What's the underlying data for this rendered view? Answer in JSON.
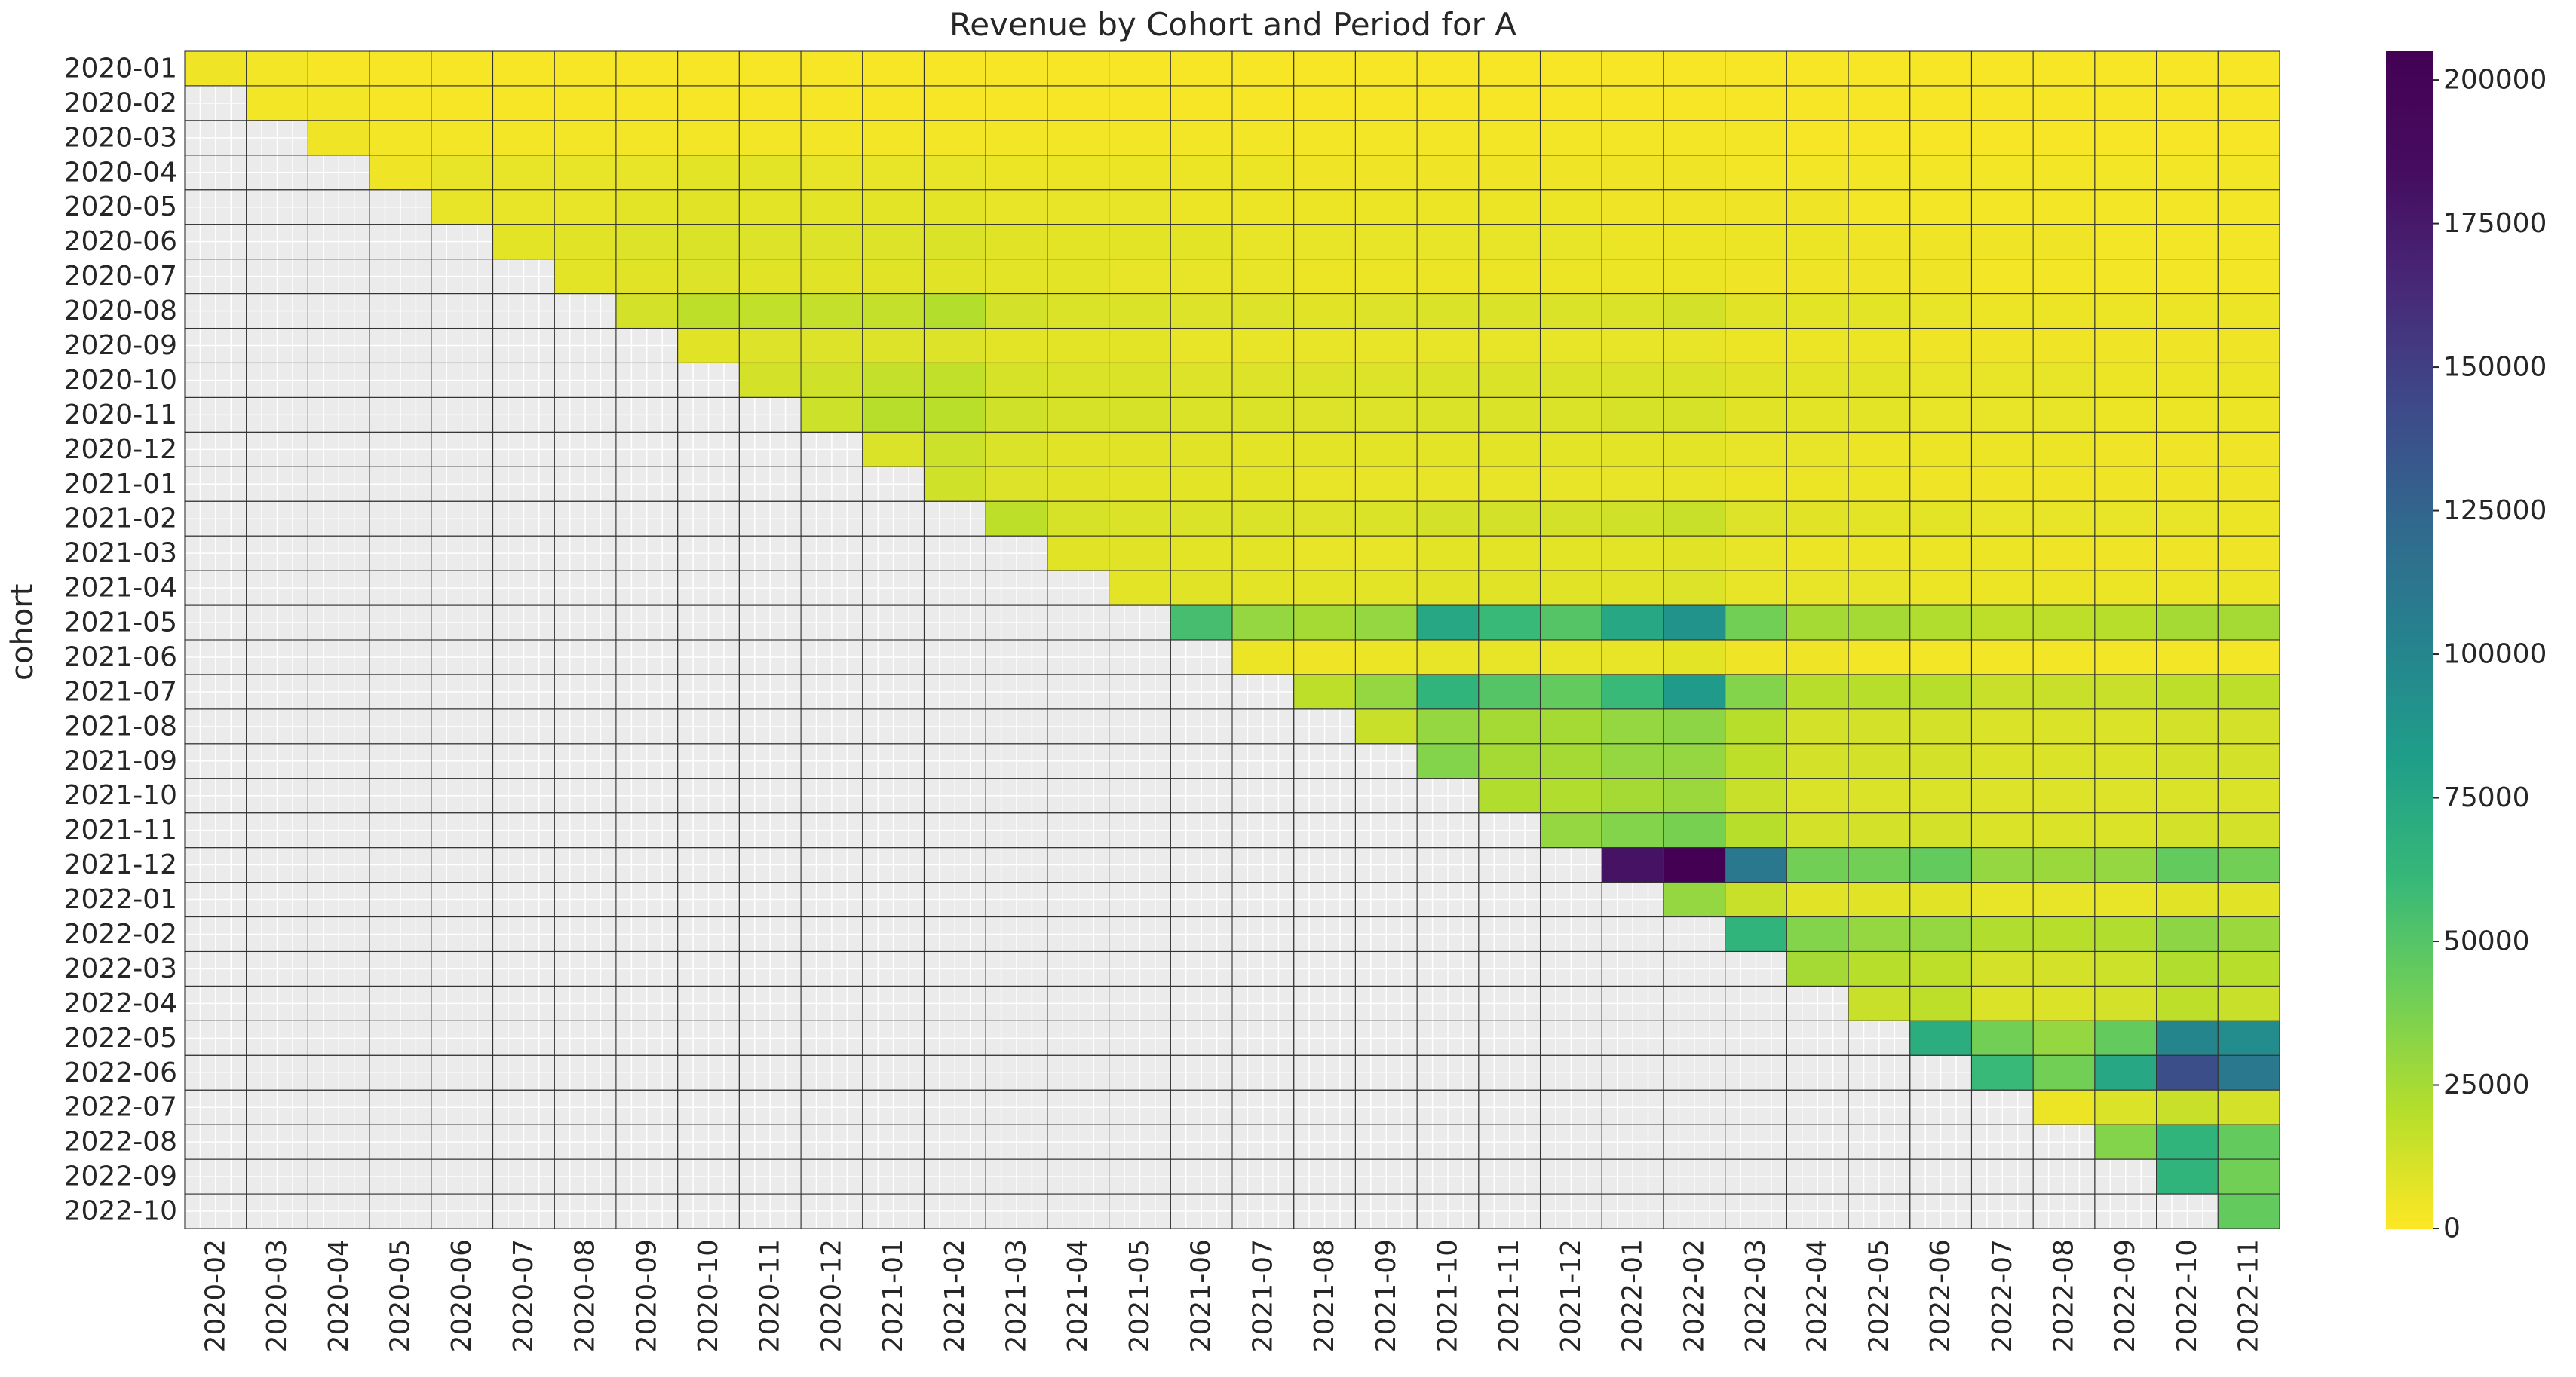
{
  "chart_data": {
    "type": "heatmap",
    "title": "Revenue by Cohort and Period for A",
    "xlabel": "",
    "ylabel": "cohort",
    "rows": [
      "2020-01",
      "2020-02",
      "2020-03",
      "2020-04",
      "2020-05",
      "2020-06",
      "2020-07",
      "2020-08",
      "2020-09",
      "2020-10",
      "2020-11",
      "2020-12",
      "2021-01",
      "2021-02",
      "2021-03",
      "2021-04",
      "2021-05",
      "2021-06",
      "2021-07",
      "2021-08",
      "2021-09",
      "2021-10",
      "2021-11",
      "2021-12",
      "2022-01",
      "2022-02",
      "2022-03",
      "2022-04",
      "2022-05",
      "2022-06",
      "2022-07",
      "2022-08",
      "2022-09",
      "2022-10"
    ],
    "columns": [
      "2020-02",
      "2020-03",
      "2020-04",
      "2020-05",
      "2020-06",
      "2020-07",
      "2020-08",
      "2020-09",
      "2020-10",
      "2020-11",
      "2020-12",
      "2021-01",
      "2021-02",
      "2021-03",
      "2021-04",
      "2021-05",
      "2021-06",
      "2021-07",
      "2021-08",
      "2021-09",
      "2021-10",
      "2021-11",
      "2021-12",
      "2022-01",
      "2022-02",
      "2022-03",
      "2022-04",
      "2022-05",
      "2022-06",
      "2022-07",
      "2022-08",
      "2022-09",
      "2022-10",
      "2022-11"
    ],
    "values": [
      [
        4000,
        3000,
        2000,
        2000,
        2000,
        2000,
        2000,
        2000,
        2000,
        2000,
        2000,
        2000,
        2000,
        2000,
        2000,
        2000,
        2000,
        2000,
        2000,
        2000,
        2000,
        2000,
        2000,
        2000,
        2000,
        2000,
        2000,
        2000,
        2000,
        2000,
        2000,
        2000,
        2000,
        2000
      ],
      [
        null,
        3000,
        3000,
        2000,
        2000,
        2000,
        2000,
        2000,
        2000,
        2000,
        2000,
        2000,
        2000,
        2000,
        2000,
        2000,
        2000,
        2000,
        2000,
        2000,
        2000,
        2000,
        2000,
        2000,
        2000,
        2000,
        2000,
        2000,
        2000,
        2000,
        2000,
        2000,
        2000,
        2000
      ],
      [
        null,
        null,
        4000,
        3000,
        3000,
        3000,
        3000,
        3000,
        3000,
        3000,
        3000,
        3000,
        3000,
        3000,
        3000,
        3000,
        3000,
        3000,
        3000,
        3000,
        3000,
        3000,
        3000,
        3000,
        3000,
        3000,
        2000,
        2000,
        2000,
        2000,
        2000,
        2000,
        2000,
        2000
      ],
      [
        null,
        null,
        null,
        4000,
        6000,
        6000,
        6000,
        6000,
        7000,
        7000,
        6000,
        6000,
        6000,
        5000,
        5000,
        5000,
        5000,
        5000,
        4000,
        4000,
        4000,
        4000,
        4000,
        4000,
        4000,
        3000,
        3000,
        3000,
        3000,
        3000,
        3000,
        3000,
        3000,
        3000
      ],
      [
        null,
        null,
        null,
        null,
        6000,
        6000,
        6000,
        7000,
        8000,
        7000,
        7000,
        7000,
        7000,
        6000,
        6000,
        6000,
        5000,
        5000,
        5000,
        5000,
        5000,
        5000,
        5000,
        4000,
        4000,
        4000,
        4000,
        3000,
        3000,
        3000,
        3000,
        3000,
        3000,
        3000
      ],
      [
        null,
        null,
        null,
        null,
        null,
        7000,
        8000,
        9000,
        10000,
        9000,
        9000,
        9000,
        10000,
        8000,
        7000,
        7000,
        7000,
        6000,
        6000,
        6000,
        6000,
        6000,
        6000,
        5000,
        5000,
        5000,
        5000,
        4000,
        4000,
        4000,
        4000,
        3000,
        3000,
        3000
      ],
      [
        null,
        null,
        null,
        null,
        null,
        null,
        7000,
        8000,
        9000,
        8000,
        8000,
        8000,
        8000,
        7000,
        7000,
        6000,
        6000,
        6000,
        5000,
        5000,
        5000,
        5000,
        5000,
        5000,
        5000,
        4000,
        4000,
        4000,
        4000,
        3000,
        3000,
        3000,
        3000,
        3000
      ],
      [
        null,
        null,
        null,
        null,
        null,
        null,
        null,
        12000,
        18000,
        17000,
        16000,
        16000,
        21000,
        12000,
        10000,
        10000,
        9000,
        9000,
        8000,
        9000,
        10000,
        10000,
        10000,
        10000,
        12000,
        8000,
        7000,
        7000,
        6000,
        5000,
        5000,
        5000,
        5000,
        5000
      ],
      [
        null,
        null,
        null,
        null,
        null,
        null,
        null,
        null,
        8000,
        9000,
        9000,
        9000,
        9000,
        7000,
        7000,
        7000,
        6000,
        6000,
        6000,
        6000,
        6000,
        6000,
        6000,
        6000,
        6000,
        5000,
        5000,
        5000,
        4000,
        4000,
        4000,
        4000,
        4000,
        4000
      ],
      [
        null,
        null,
        null,
        null,
        null,
        null,
        null,
        null,
        null,
        12000,
        13000,
        16000,
        17000,
        11000,
        10000,
        10000,
        9000,
        9000,
        9000,
        9000,
        10000,
        10000,
        10000,
        10000,
        10000,
        8000,
        7000,
        7000,
        6000,
        6000,
        6000,
        5000,
        5000,
        5000
      ],
      [
        null,
        null,
        null,
        null,
        null,
        null,
        null,
        null,
        null,
        null,
        14000,
        20000,
        19000,
        13000,
        11000,
        11000,
        10000,
        10000,
        9000,
        9000,
        10000,
        10000,
        10000,
        11000,
        11000,
        8000,
        7000,
        7000,
        6000,
        6000,
        6000,
        5000,
        5000,
        5000
      ],
      [
        null,
        null,
        null,
        null,
        null,
        null,
        null,
        null,
        null,
        null,
        null,
        10000,
        14000,
        10000,
        8000,
        8000,
        8000,
        7000,
        7000,
        7000,
        7000,
        7000,
        7000,
        7000,
        7000,
        6000,
        6000,
        5000,
        5000,
        5000,
        5000,
        4000,
        4000,
        4000
      ],
      [
        null,
        null,
        null,
        null,
        null,
        null,
        null,
        null,
        null,
        null,
        null,
        null,
        13000,
        9000,
        8000,
        7000,
        7000,
        7000,
        6000,
        6000,
        6000,
        6000,
        6000,
        6000,
        6000,
        5000,
        5000,
        5000,
        4000,
        4000,
        4000,
        4000,
        4000,
        4000
      ],
      [
        null,
        null,
        null,
        null,
        null,
        null,
        null,
        null,
        null,
        null,
        null,
        null,
        null,
        18000,
        11000,
        10000,
        10000,
        10000,
        9000,
        10000,
        12000,
        12000,
        12000,
        13000,
        15000,
        9000,
        8000,
        7000,
        7000,
        6000,
        6000,
        6000,
        6000,
        5000
      ],
      [
        null,
        null,
        null,
        null,
        null,
        null,
        null,
        null,
        null,
        null,
        null,
        null,
        null,
        null,
        8000,
        8000,
        7000,
        7000,
        6000,
        6000,
        7000,
        7000,
        7000,
        7000,
        8000,
        6000,
        5000,
        5000,
        5000,
        5000,
        4000,
        4000,
        4000,
        4000
      ],
      [
        null,
        null,
        null,
        null,
        null,
        null,
        null,
        null,
        null,
        null,
        null,
        null,
        null,
        null,
        null,
        7000,
        8000,
        7000,
        7000,
        7000,
        8000,
        8000,
        8000,
        8000,
        9000,
        6000,
        6000,
        6000,
        5000,
        5000,
        5000,
        5000,
        5000,
        5000
      ],
      [
        null,
        null,
        null,
        null,
        null,
        null,
        null,
        null,
        null,
        null,
        null,
        null,
        null,
        null,
        null,
        null,
        55000,
        30000,
        25000,
        30000,
        75000,
        60000,
        50000,
        75000,
        90000,
        40000,
        25000,
        25000,
        22000,
        18000,
        18000,
        20000,
        25000,
        25000
      ],
      [
        null,
        null,
        null,
        null,
        null,
        null,
        null,
        null,
        null,
        null,
        null,
        null,
        null,
        null,
        null,
        null,
        null,
        5000,
        4000,
        5000,
        6000,
        6000,
        6000,
        6000,
        7000,
        4000,
        4000,
        3000,
        3000,
        3000,
        3000,
        3000,
        3000,
        3000
      ],
      [
        null,
        null,
        null,
        null,
        null,
        null,
        null,
        null,
        null,
        null,
        null,
        null,
        null,
        null,
        null,
        null,
        null,
        null,
        18000,
        30000,
        65000,
        50000,
        45000,
        60000,
        85000,
        35000,
        20000,
        20000,
        20000,
        15000,
        15000,
        15000,
        18000,
        18000
      ],
      [
        null,
        null,
        null,
        null,
        null,
        null,
        null,
        null,
        null,
        null,
        null,
        null,
        null,
        null,
        null,
        null,
        null,
        null,
        null,
        15000,
        30000,
        25000,
        25000,
        30000,
        32000,
        20000,
        12000,
        12000,
        12000,
        10000,
        10000,
        10000,
        12000,
        12000
      ],
      [
        null,
        null,
        null,
        null,
        null,
        null,
        null,
        null,
        null,
        null,
        null,
        null,
        null,
        null,
        null,
        null,
        null,
        null,
        null,
        null,
        35000,
        25000,
        25000,
        30000,
        30000,
        18000,
        12000,
        12000,
        12000,
        10000,
        10000,
        10000,
        12000,
        12000
      ],
      [
        null,
        null,
        null,
        null,
        null,
        null,
        null,
        null,
        null,
        null,
        null,
        null,
        null,
        null,
        null,
        null,
        null,
        null,
        null,
        null,
        null,
        22000,
        22000,
        25000,
        28000,
        15000,
        10000,
        10000,
        10000,
        9000,
        9000,
        9000,
        10000,
        10000
      ],
      [
        null,
        null,
        null,
        null,
        null,
        null,
        null,
        null,
        null,
        null,
        null,
        null,
        null,
        null,
        null,
        null,
        null,
        null,
        null,
        null,
        null,
        null,
        30000,
        35000,
        38000,
        20000,
        12000,
        12000,
        12000,
        10000,
        10000,
        10000,
        12000,
        12000
      ],
      [
        null,
        null,
        null,
        null,
        null,
        null,
        null,
        null,
        null,
        null,
        null,
        null,
        null,
        null,
        null,
        null,
        null,
        null,
        null,
        null,
        null,
        null,
        null,
        180000,
        205000,
        110000,
        40000,
        40000,
        45000,
        30000,
        28000,
        30000,
        45000,
        40000
      ],
      [
        null,
        null,
        null,
        null,
        null,
        null,
        null,
        null,
        null,
        null,
        null,
        null,
        null,
        null,
        null,
        null,
        null,
        null,
        null,
        null,
        null,
        null,
        null,
        null,
        30000,
        15000,
        8000,
        8000,
        8000,
        6000,
        6000,
        6000,
        8000,
        8000
      ],
      [
        null,
        null,
        null,
        null,
        null,
        null,
        null,
        null,
        null,
        null,
        null,
        null,
        null,
        null,
        null,
        null,
        null,
        null,
        null,
        null,
        null,
        null,
        null,
        null,
        null,
        65000,
        35000,
        30000,
        30000,
        22000,
        20000,
        22000,
        32000,
        28000
      ],
      [
        null,
        null,
        null,
        null,
        null,
        null,
        null,
        null,
        null,
        null,
        null,
        null,
        null,
        null,
        null,
        null,
        null,
        null,
        null,
        null,
        null,
        null,
        null,
        null,
        null,
        null,
        25000,
        20000,
        18000,
        12000,
        12000,
        14000,
        22000,
        20000
      ],
      [
        null,
        null,
        null,
        null,
        null,
        null,
        null,
        null,
        null,
        null,
        null,
        null,
        null,
        null,
        null,
        null,
        null,
        null,
        null,
        null,
        null,
        null,
        null,
        null,
        null,
        null,
        null,
        15000,
        18000,
        10000,
        10000,
        12000,
        18000,
        15000
      ],
      [
        null,
        null,
        null,
        null,
        null,
        null,
        null,
        null,
        null,
        null,
        null,
        null,
        null,
        null,
        null,
        null,
        null,
        null,
        null,
        null,
        null,
        null,
        null,
        null,
        null,
        null,
        null,
        null,
        70000,
        40000,
        30000,
        45000,
        100000,
        95000
      ],
      [
        null,
        null,
        null,
        null,
        null,
        null,
        null,
        null,
        null,
        null,
        null,
        null,
        null,
        null,
        null,
        null,
        null,
        null,
        null,
        null,
        null,
        null,
        null,
        null,
        null,
        null,
        null,
        null,
        null,
        60000,
        40000,
        75000,
        140000,
        110000
      ],
      [
        null,
        null,
        null,
        null,
        null,
        null,
        null,
        null,
        null,
        null,
        null,
        null,
        null,
        null,
        null,
        null,
        null,
        null,
        null,
        null,
        null,
        null,
        null,
        null,
        null,
        null,
        null,
        null,
        null,
        null,
        5000,
        10000,
        15000,
        12000
      ],
      [
        null,
        null,
        null,
        null,
        null,
        null,
        null,
        null,
        null,
        null,
        null,
        null,
        null,
        null,
        null,
        null,
        null,
        null,
        null,
        null,
        null,
        null,
        null,
        null,
        null,
        null,
        null,
        null,
        null,
        null,
        null,
        35000,
        65000,
        45000
      ],
      [
        null,
        null,
        null,
        null,
        null,
        null,
        null,
        null,
        null,
        null,
        null,
        null,
        null,
        null,
        null,
        null,
        null,
        null,
        null,
        null,
        null,
        null,
        null,
        null,
        null,
        null,
        null,
        null,
        null,
        null,
        null,
        null,
        65000,
        40000
      ],
      [
        null,
        null,
        null,
        null,
        null,
        null,
        null,
        null,
        null,
        null,
        null,
        null,
        null,
        null,
        null,
        null,
        null,
        null,
        null,
        null,
        null,
        null,
        null,
        null,
        null,
        null,
        null,
        null,
        null,
        null,
        null,
        null,
        null,
        45000
      ]
    ],
    "vrange": [
      0,
      205000
    ],
    "colorbar": {
      "colormap": "viridis_r",
      "ticks": [
        0,
        25000,
        50000,
        75000,
        100000,
        125000,
        150000,
        175000,
        200000
      ],
      "tick_labels": [
        "0",
        "25000",
        "50000",
        "75000",
        "100000",
        "125000",
        "150000",
        "175000",
        "200000"
      ]
    },
    "missing_color": "#ebebeb",
    "grid": true,
    "legend": "colorbar-right"
  }
}
